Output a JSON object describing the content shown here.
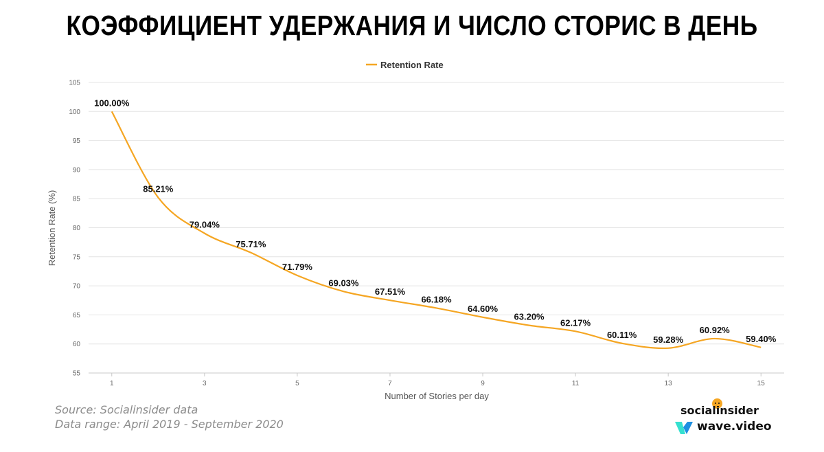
{
  "title": "КОЭФФИЦИЕНТ УДЕРЖАНИЯ И ЧИСЛО СТОРИС В ДЕНЬ",
  "footer": {
    "source": "Source: Socialinsider data",
    "range": "Data range: April 2019 - September 2020"
  },
  "brands": {
    "socialinsider": "socialinsider",
    "wave": "wave.video",
    "socialinsider_dot_color": "#f5a623",
    "wave_color_light": "#35e0d0",
    "wave_color_dark": "#1d8fe1"
  },
  "chart_data": {
    "type": "line",
    "title": "",
    "xlabel": "Number of Stories per day",
    "ylabel": "Retention Rate (%)",
    "x": [
      1,
      2,
      3,
      4,
      5,
      6,
      7,
      8,
      9,
      10,
      11,
      12,
      13,
      14,
      15
    ],
    "xticks": [
      1,
      3,
      5,
      7,
      9,
      11,
      13,
      15
    ],
    "yticks": [
      55,
      60,
      65,
      70,
      75,
      80,
      85,
      90,
      95,
      100,
      105
    ],
    "xlim": [
      0.5,
      15.5
    ],
    "ylim": [
      55,
      105
    ],
    "grid": true,
    "legend": "top-center",
    "series": [
      {
        "name": "Retention Rate",
        "color": "#f5a623",
        "values": [
          100.0,
          85.21,
          79.04,
          75.71,
          71.79,
          69.03,
          67.51,
          66.18,
          64.6,
          63.2,
          62.17,
          60.11,
          59.28,
          60.92,
          59.4
        ],
        "labels": [
          "100.00%",
          "85.21%",
          "79.04%",
          "75.71%",
          "71.79%",
          "69.03%",
          "67.51%",
          "66.18%",
          "64.60%",
          "63.20%",
          "62.17%",
          "60.11%",
          "59.28%",
          "60.92%",
          "59.40%"
        ]
      }
    ]
  }
}
